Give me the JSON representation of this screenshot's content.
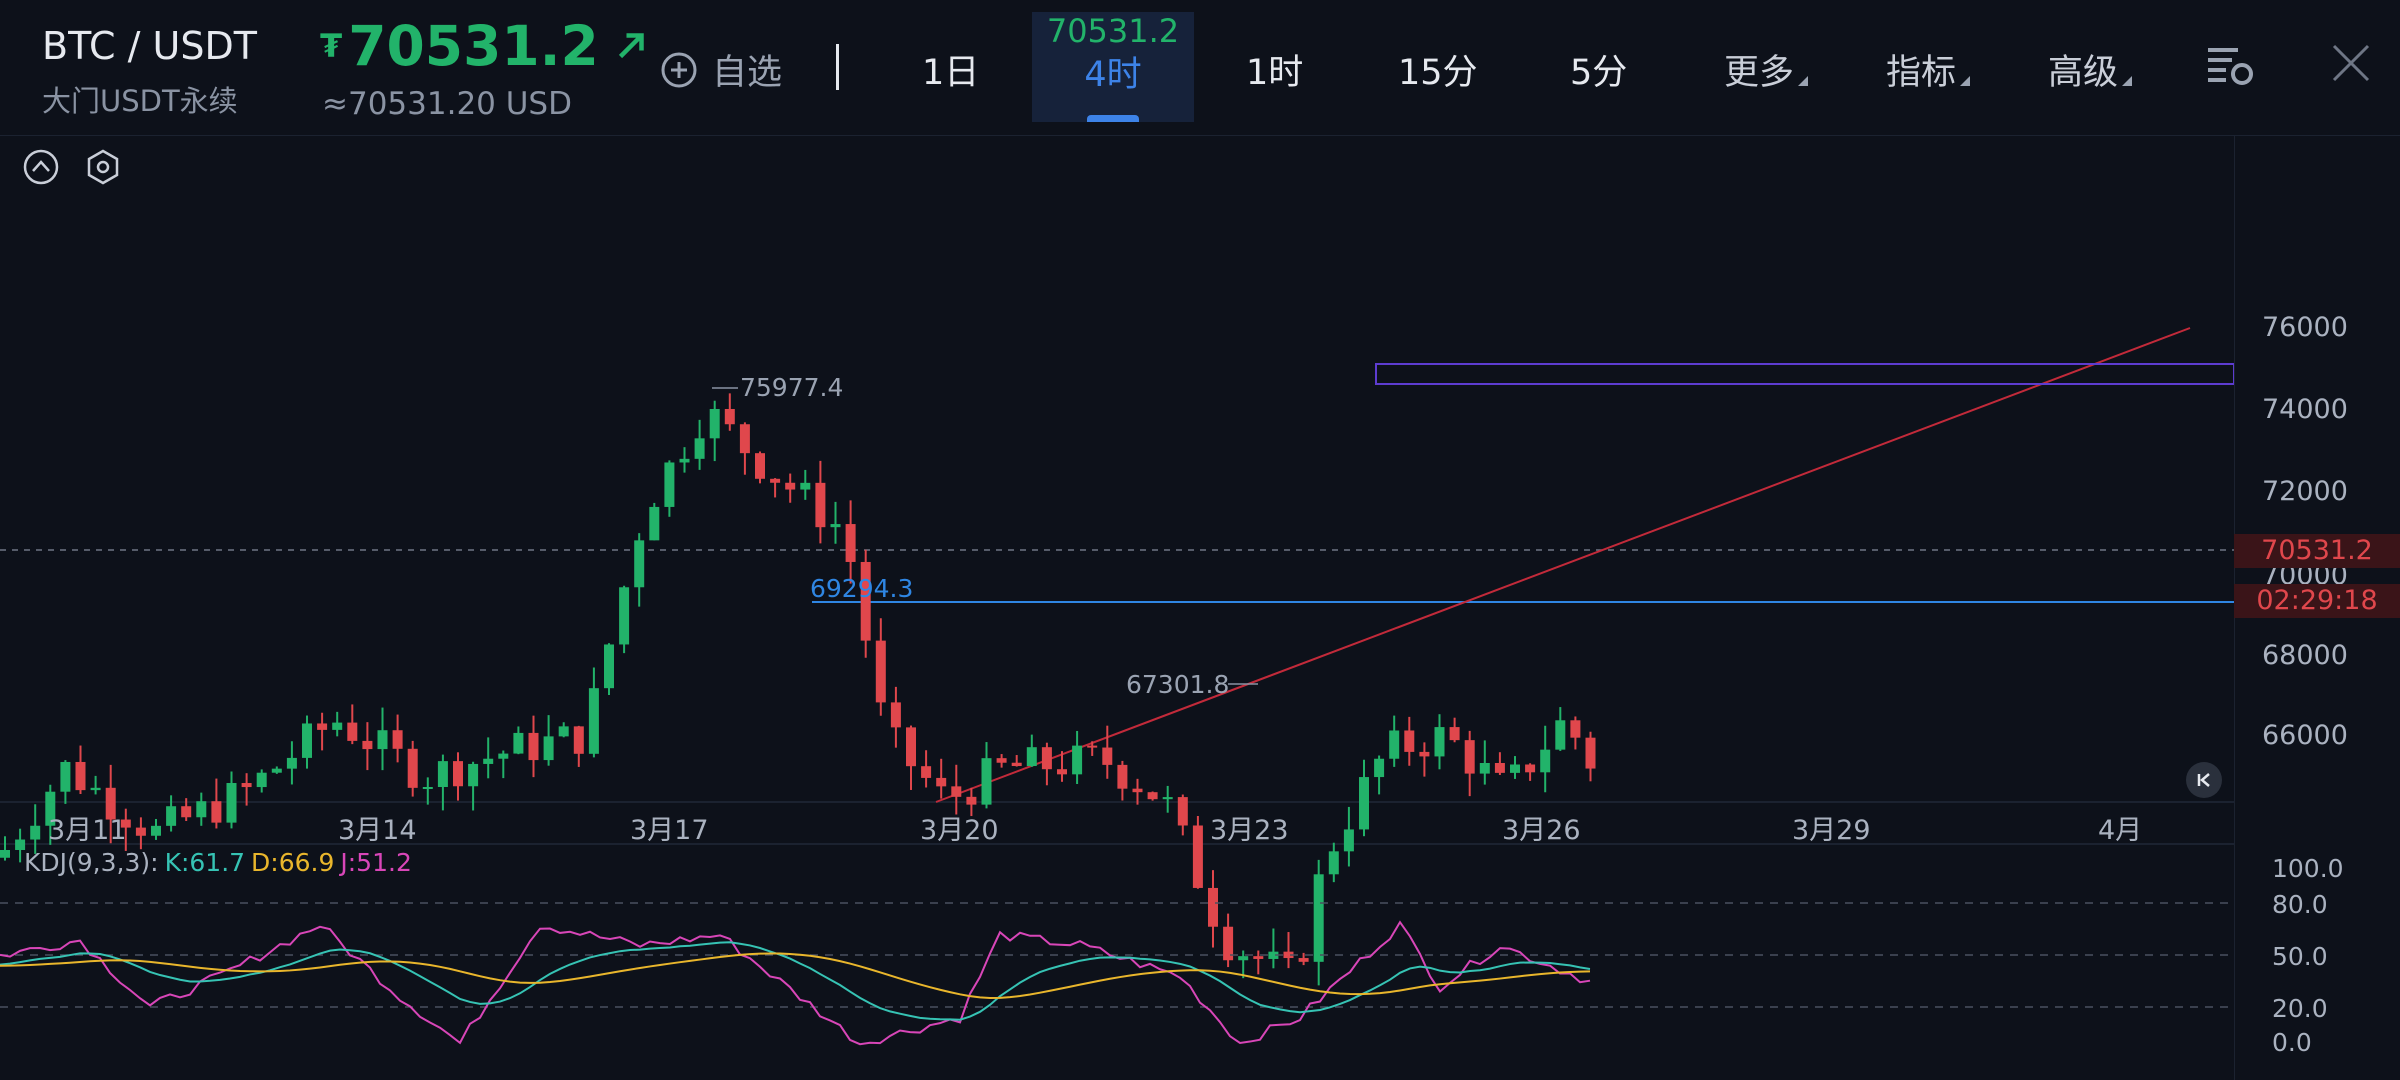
{
  "header": {
    "pair": "BTC / USDT",
    "subtitle": "大门USDT永续",
    "currency_symbol": "₮",
    "price": "70531.2",
    "usd_price": "≈70531.20 USD",
    "favorite_label": "自选",
    "tabs": [
      {
        "label": "1日"
      },
      {
        "label": "4时",
        "live_price": "70531.2",
        "active": true
      },
      {
        "label": "1时"
      },
      {
        "label": "15分"
      },
      {
        "label": "5分"
      },
      {
        "label": "更多"
      },
      {
        "label": "指标"
      },
      {
        "label": "高级"
      }
    ]
  },
  "chart": {
    "y_ticks": [
      "76000",
      "74000",
      "72000",
      "70000",
      "68000",
      "66000"
    ],
    "x_ticks": [
      "3月11",
      "3月14",
      "3月17",
      "3月20",
      "3月23",
      "3月26",
      "3月29",
      "4月"
    ],
    "last_price_tag": "70531.2",
    "countdown": "02:29:18",
    "high_label": "75977.4",
    "low_label": "67301.8",
    "hline_label": "69294.3",
    "colors": {
      "up": "#22b36a",
      "down": "#e0474c",
      "hline": "#2f86e3",
      "trend": "#c22a3a",
      "rect": "#5d3cd0"
    }
  },
  "kdj": {
    "name": "KDJ(9,3,3):",
    "k": "K:61.7",
    "d": "D:66.9",
    "j": "J:51.2",
    "levels": [
      "100.0",
      "80.0",
      "50.0",
      "20.0",
      "0.0"
    ],
    "colors": {
      "k": "#36c3b4",
      "d": "#e9b62c",
      "j": "#d846b8"
    }
  }
}
